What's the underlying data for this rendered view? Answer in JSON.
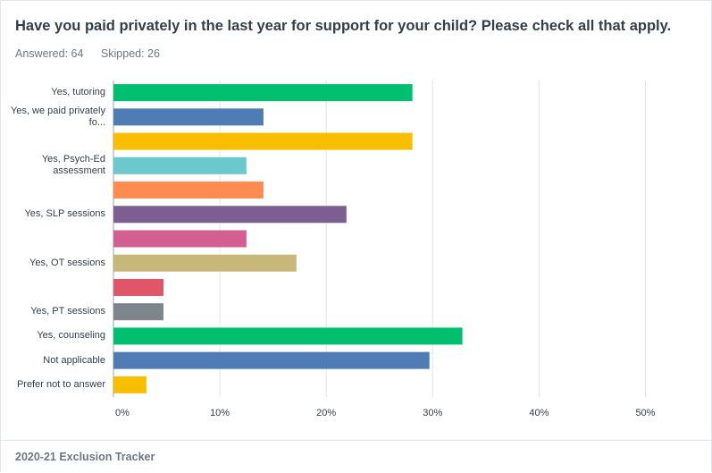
{
  "header": {
    "title": "Have you paid privately in the last year for support for your child? Please check all that apply.",
    "answered": "Answered: 64",
    "skipped": "Skipped: 26"
  },
  "footer": {
    "text": "2020-21 Exclusion Tracker"
  },
  "chart_data": {
    "type": "bar",
    "orientation": "horizontal",
    "title": "Have you paid privately in the last year for support for your child? Please check all that apply.",
    "categories": [
      "Yes, tutoring",
      "Yes, we paid privately fo...",
      "",
      "Yes, Psych-Ed assessment",
      "",
      "Yes, SLP sessions",
      "",
      "Yes, OT sessions",
      "",
      "Yes, PT sessions",
      "Yes, counseling",
      "Not applicable",
      "Prefer not to answer"
    ],
    "values": [
      28.1,
      14.1,
      28.1,
      12.5,
      14.1,
      21.9,
      12.5,
      17.2,
      4.7,
      4.7,
      32.8,
      29.7,
      3.1
    ],
    "colors": [
      "#00bf6f",
      "#507cb6",
      "#f9be00",
      "#6bc8cd",
      "#ff8b4f",
      "#7d5e90",
      "#d25f90",
      "#c7b879",
      "#e05567",
      "#7d868c",
      "#00bf6f",
      "#507cb6",
      "#f9be00"
    ],
    "xlim": [
      0,
      55
    ],
    "xticks": [
      0,
      10,
      20,
      30,
      40,
      50
    ],
    "xtick_labels": [
      "0%",
      "10%",
      "20%",
      "30%",
      "40%",
      "50%"
    ],
    "grid": true
  }
}
